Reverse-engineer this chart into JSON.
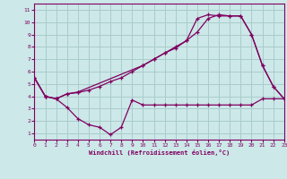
{
  "xlabel": "Windchill (Refroidissement éolien,°C)",
  "bg_color": "#cce8e8",
  "grid_color": "#aacccc",
  "line_color": "#800060",
  "xlim": [
    0,
    23
  ],
  "ylim": [
    0.5,
    11.5
  ],
  "xticks": [
    0,
    1,
    2,
    3,
    4,
    5,
    6,
    7,
    8,
    9,
    10,
    11,
    12,
    13,
    14,
    15,
    16,
    17,
    18,
    19,
    20,
    21,
    22,
    23
  ],
  "yticks": [
    1,
    2,
    3,
    4,
    5,
    6,
    7,
    8,
    9,
    10,
    11
  ],
  "line1_x": [
    0,
    1,
    2,
    3,
    4,
    5,
    6,
    7,
    8,
    9,
    10,
    11,
    12,
    13,
    14,
    15,
    16,
    17,
    18,
    19,
    20,
    21,
    22,
    23
  ],
  "line1_y": [
    5.5,
    4.0,
    3.8,
    4.2,
    4.3,
    4.5,
    4.8,
    5.2,
    5.5,
    6.0,
    6.5,
    7.0,
    7.5,
    7.9,
    8.5,
    10.3,
    10.6,
    10.5,
    10.5,
    10.5,
    9.0,
    6.5,
    4.8,
    3.8
  ],
  "line2_x": [
    0,
    1,
    2,
    3,
    4,
    10,
    11,
    12,
    13,
    14,
    15,
    16,
    17,
    18,
    19,
    20,
    21,
    22,
    23
  ],
  "line2_y": [
    5.5,
    4.0,
    3.8,
    4.2,
    4.35,
    6.5,
    7.0,
    7.5,
    8.0,
    8.5,
    9.2,
    10.3,
    10.6,
    10.5,
    10.5,
    9.0,
    6.5,
    4.8,
    3.8
  ],
  "line3_x": [
    0,
    1,
    2,
    3,
    4,
    5,
    6,
    7,
    8,
    9,
    10,
    11,
    12,
    13,
    14,
    15,
    16,
    17,
    18,
    19,
    20,
    21,
    22,
    23
  ],
  "line3_y": [
    5.5,
    4.0,
    3.8,
    3.1,
    2.2,
    1.7,
    1.5,
    0.9,
    1.5,
    3.7,
    3.3,
    3.3,
    3.3,
    3.3,
    3.3,
    3.3,
    3.3,
    3.3,
    3.3,
    3.3,
    3.3,
    3.8,
    3.8,
    3.8
  ]
}
